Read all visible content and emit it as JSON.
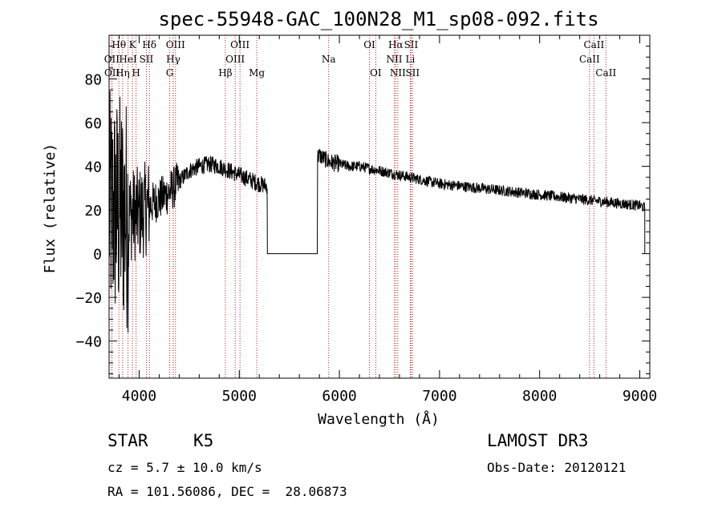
{
  "chart_data": {
    "type": "line",
    "title": "spec-55948-GAC_100N28_M1_sp08-092.fits",
    "xlabel": "Wavelength (Å)",
    "ylabel": "Flux (relative)",
    "xlim": [
      3700,
      9100
    ],
    "ylim": [
      -57,
      100
    ],
    "xticks": [
      4000,
      5000,
      6000,
      7000,
      8000,
      9000
    ],
    "yticks": [
      -40,
      -20,
      0,
      20,
      40,
      60,
      80
    ],
    "gap": {
      "x": [
        5280,
        5780
      ],
      "value": 0
    },
    "spectrum_anchors": [
      [
        3700,
        20
      ],
      [
        3800,
        20
      ],
      [
        3900,
        18
      ],
      [
        4000,
        18
      ],
      [
        4100,
        22
      ],
      [
        4200,
        25
      ],
      [
        4300,
        28
      ],
      [
        4400,
        33
      ],
      [
        4500,
        38
      ],
      [
        4600,
        40
      ],
      [
        4700,
        41
      ],
      [
        4800,
        40
      ],
      [
        4900,
        38
      ],
      [
        5000,
        36
      ],
      [
        5100,
        34
      ],
      [
        5200,
        32
      ],
      [
        5270,
        31
      ],
      [
        5800,
        45
      ],
      [
        5900,
        42
      ],
      [
        6000,
        41
      ],
      [
        6100,
        40
      ],
      [
        6200,
        40
      ],
      [
        6300,
        39
      ],
      [
        6400,
        38
      ],
      [
        6500,
        37
      ],
      [
        6600,
        36
      ],
      [
        6700,
        35
      ],
      [
        6800,
        34
      ],
      [
        6900,
        33
      ],
      [
        7000,
        32
      ],
      [
        7200,
        31
      ],
      [
        7400,
        30
      ],
      [
        7600,
        29
      ],
      [
        7800,
        28
      ],
      [
        8000,
        27
      ],
      [
        8200,
        26
      ],
      [
        8400,
        25
      ],
      [
        8600,
        24
      ],
      [
        8800,
        23
      ],
      [
        9000,
        22
      ],
      [
        9050,
        21
      ]
    ],
    "series": [
      {
        "name": "flux",
        "values_note": "spectrum"
      }
    ],
    "lines": [
      {
        "label": "Hθ",
        "wave": 3798,
        "row": 0
      },
      {
        "label": "OII",
        "wave": 3727,
        "row": 1
      },
      {
        "label": "OII",
        "wave": 3729,
        "row": 2
      },
      {
        "label": "Hη",
        "wave": 3835,
        "row": 2
      },
      {
        "label": "K",
        "wave": 3934,
        "row": 0
      },
      {
        "label": "HeI",
        "wave": 3889,
        "row": 1
      },
      {
        "label": "H",
        "wave": 3969,
        "row": 2
      },
      {
        "label": "Hδ",
        "wave": 4102,
        "row": 0
      },
      {
        "label": "SII",
        "wave": 4072,
        "row": 1
      },
      {
        "label": "OIII",
        "wave": 4363,
        "row": 0
      },
      {
        "label": "Hγ",
        "wave": 4341,
        "row": 1
      },
      {
        "label": "G",
        "wave": 4305,
        "row": 2
      },
      {
        "label": "OIII",
        "wave": 5007,
        "row": 0
      },
      {
        "label": "OIII",
        "wave": 4959,
        "row": 1
      },
      {
        "label": "Hβ",
        "wave": 4861,
        "row": 2
      },
      {
        "label": "Mg",
        "wave": 5175,
        "row": 2
      },
      {
        "label": "Na",
        "wave": 5893,
        "row": 1
      },
      {
        "label": "OI",
        "wave": 6300,
        "row": 0
      },
      {
        "label": "OI",
        "wave": 6363,
        "row": 2
      },
      {
        "label": "Hα",
        "wave": 6563,
        "row": 0
      },
      {
        "label": "NII",
        "wave": 6548,
        "row": 1
      },
      {
        "label": "NII",
        "wave": 6583,
        "row": 2
      },
      {
        "label": "SII",
        "wave": 6716,
        "row": 0
      },
      {
        "label": "Li",
        "wave": 6708,
        "row": 1
      },
      {
        "label": "SII",
        "wave": 6731,
        "row": 2
      },
      {
        "label": "CaII",
        "wave": 8542,
        "row": 0
      },
      {
        "label": "CaII",
        "wave": 8498,
        "row": 1
      },
      {
        "label": "CaII",
        "wave": 8662,
        "row": 2
      }
    ],
    "line_color": "#b22222"
  },
  "info": {
    "class_label": "STAR",
    "subclass": "K5",
    "survey": "LAMOST DR3",
    "cz": "cz = 5.7 ± 10.0 km/s",
    "obs_date": "Obs-Date: 20120121",
    "radec": "RA = 101.56086, DEC =  28.06873"
  }
}
